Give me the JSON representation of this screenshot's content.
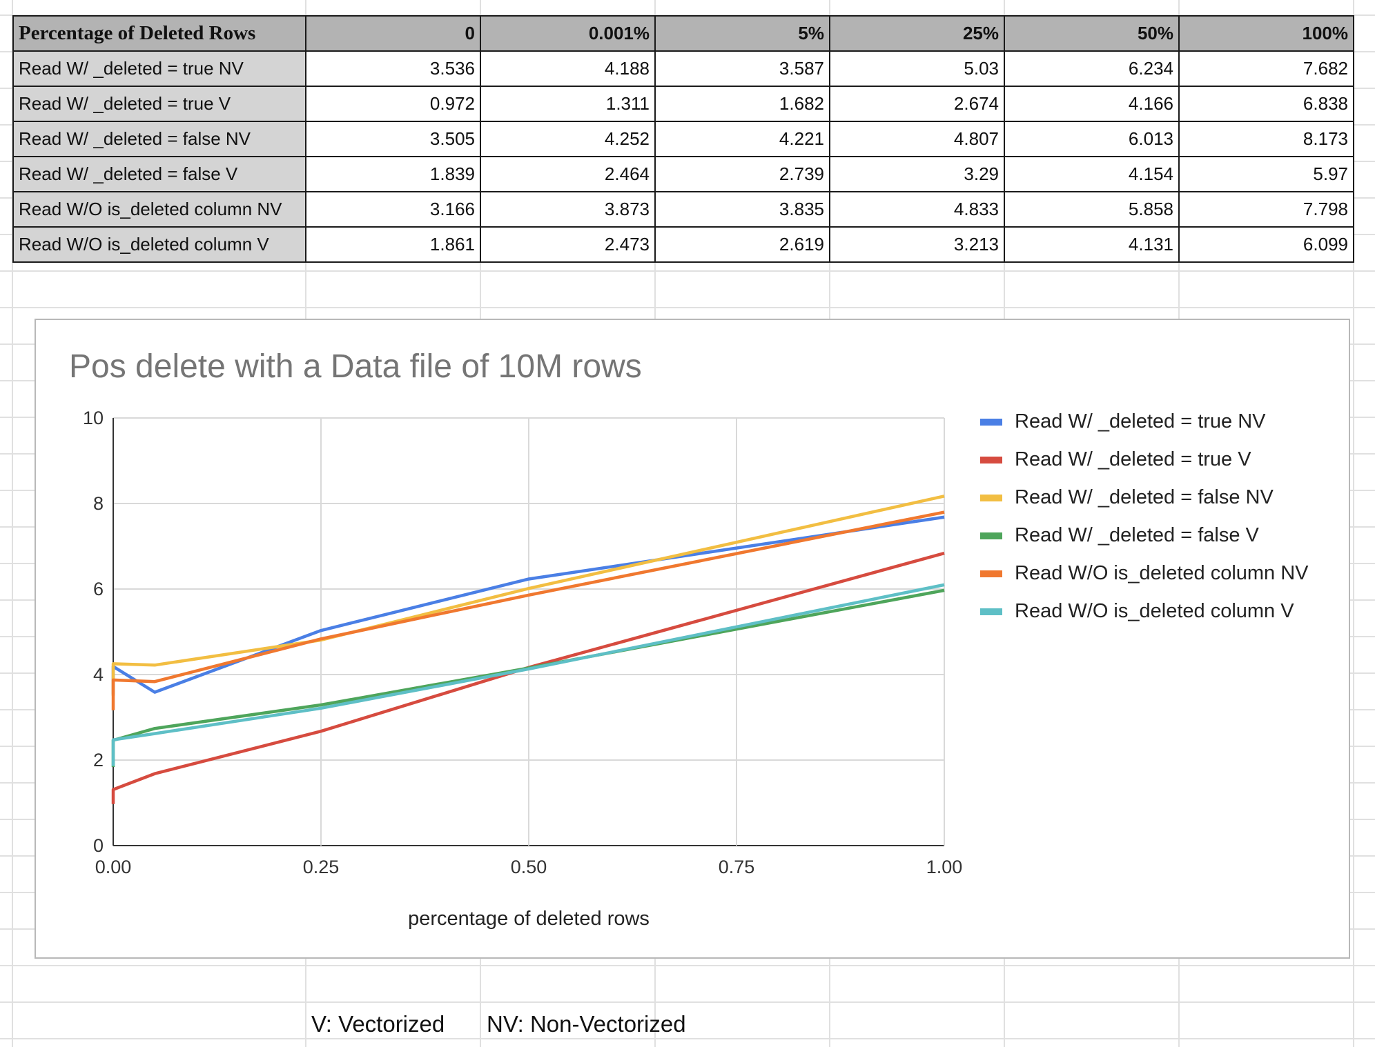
{
  "table": {
    "corner_label": "Percentage of Deleted Rows",
    "headers": [
      "0",
      "0.001%",
      "5%",
      "25%",
      "50%",
      "100%"
    ],
    "rows": [
      {
        "label": "Read W/ _deleted = true NV",
        "values": [
          "3.536",
          "4.188",
          "3.587",
          "5.03",
          "6.234",
          "7.682"
        ]
      },
      {
        "label": "Read W/ _deleted = true V",
        "values": [
          "0.972",
          "1.311",
          "1.682",
          "2.674",
          "4.166",
          "6.838"
        ]
      },
      {
        "label": "Read W/ _deleted = false NV",
        "values": [
          "3.505",
          "4.252",
          "4.221",
          "4.807",
          "6.013",
          "8.173"
        ]
      },
      {
        "label": "Read W/ _deleted = false V",
        "values": [
          "1.839",
          "2.464",
          "2.739",
          "3.29",
          "4.154",
          "5.97"
        ]
      },
      {
        "label": "Read W/O is_deleted column NV",
        "values": [
          "3.166",
          "3.873",
          "3.835",
          "4.833",
          "5.858",
          "7.798"
        ]
      },
      {
        "label": "Read W/O is_deleted column V",
        "values": [
          "1.861",
          "2.473",
          "2.619",
          "3.213",
          "4.131",
          "6.099"
        ]
      }
    ]
  },
  "chart_data": {
    "type": "line",
    "title": "Pos delete with a Data file of 10M rows",
    "xlabel": "percentage of deleted rows",
    "ylabel": "",
    "x": [
      0,
      1e-05,
      0.05,
      0.25,
      0.5,
      1.0
    ],
    "xlim": [
      0,
      1
    ],
    "ylim": [
      0,
      10
    ],
    "x_ticks": [
      "0.00",
      "0.25",
      "0.50",
      "0.75",
      "1.00"
    ],
    "y_ticks": [
      "0",
      "2",
      "4",
      "6",
      "8",
      "10"
    ],
    "grid": true,
    "legend_position": "right",
    "series": [
      {
        "name": "Read W/ _deleted = true NV",
        "color": "#4a7fe5",
        "values": [
          3.536,
          4.188,
          3.587,
          5.03,
          6.234,
          7.682
        ]
      },
      {
        "name": "Read W/ _deleted = true V",
        "color": "#d64b3f",
        "values": [
          0.972,
          1.311,
          1.682,
          2.674,
          4.166,
          6.838
        ]
      },
      {
        "name": "Read W/ _deleted = false NV",
        "color": "#f2be42",
        "values": [
          3.505,
          4.252,
          4.221,
          4.807,
          6.013,
          8.173
        ]
      },
      {
        "name": "Read W/ _deleted = false V",
        "color": "#4ea55b",
        "values": [
          1.839,
          2.464,
          2.739,
          3.29,
          4.154,
          5.97
        ]
      },
      {
        "name": "Read W/O is_deleted column NV",
        "color": "#f0782f",
        "values": [
          3.166,
          3.873,
          3.835,
          4.833,
          5.858,
          7.798
        ]
      },
      {
        "name": "Read W/O is_deleted column V",
        "color": "#5ebfc6",
        "values": [
          1.861,
          2.473,
          2.619,
          3.213,
          4.131,
          6.099
        ]
      }
    ]
  },
  "notes": {
    "vectorized": "V: Vectorized",
    "non_vectorized": "NV: Non-Vectorized"
  }
}
